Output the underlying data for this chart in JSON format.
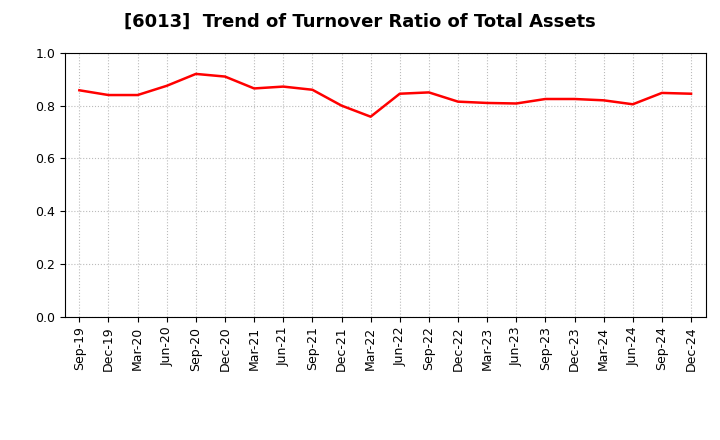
{
  "title": "[6013]  Trend of Turnover Ratio of Total Assets",
  "line_color": "#FF0000",
  "line_width": 1.8,
  "background_color": "#FFFFFF",
  "ylim": [
    0.0,
    1.0
  ],
  "yticks": [
    0.0,
    0.2,
    0.4,
    0.6,
    0.8,
    1.0
  ],
  "grid_color": "#BBBBBB",
  "labels": [
    "Sep-19",
    "Dec-19",
    "Mar-20",
    "Jun-20",
    "Sep-20",
    "Dec-20",
    "Mar-21",
    "Jun-21",
    "Sep-21",
    "Dec-21",
    "Mar-22",
    "Jun-22",
    "Sep-22",
    "Dec-22",
    "Mar-23",
    "Jun-23",
    "Sep-23",
    "Dec-23",
    "Mar-24",
    "Jun-24",
    "Sep-24",
    "Dec-24"
  ],
  "values": [
    0.858,
    0.84,
    0.84,
    0.875,
    0.92,
    0.91,
    0.865,
    0.872,
    0.86,
    0.8,
    0.758,
    0.845,
    0.85,
    0.815,
    0.81,
    0.808,
    0.825,
    0.825,
    0.82,
    0.805,
    0.848,
    0.845
  ],
  "title_fontsize": 13,
  "tick_fontsize": 9
}
